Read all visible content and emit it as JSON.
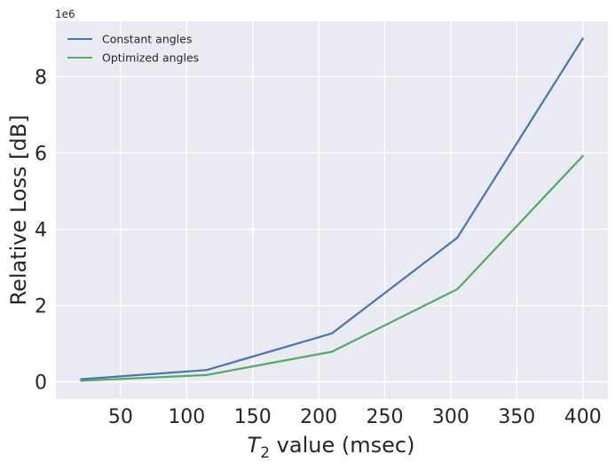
{
  "chart_data": {
    "type": "line",
    "title": "",
    "xlabel_main": "T",
    "xlabel_sub": "2",
    "xlabel_rest": " value (msec)",
    "ylabel": "Relative Loss [dB]",
    "y_offset_label": "1e6",
    "x": [
      20,
      115,
      210,
      305,
      400
    ],
    "xlim": [
      1.0,
      419.0
    ],
    "ylim": [
      -450000,
      9450000
    ],
    "x_ticks": [
      50,
      100,
      150,
      200,
      250,
      300,
      350,
      400
    ],
    "y_ticks": [
      0,
      2000000,
      4000000,
      6000000,
      8000000
    ],
    "x_tick_labels": [
      "50",
      "100",
      "150",
      "200",
      "250",
      "300",
      "350",
      "400"
    ],
    "y_tick_labels": [
      "0",
      "2",
      "4",
      "6",
      "8"
    ],
    "grid": true,
    "legend_position": "upper-left",
    "series": [
      {
        "name": "Constant angles",
        "color": "#4c72b0",
        "values": [
          70000,
          310000,
          1270000,
          3780000,
          9000000
        ]
      },
      {
        "name": "Optimized angles",
        "color": "#55a868",
        "values": [
          30000,
          180000,
          790000,
          2430000,
          5920000
        ]
      }
    ]
  }
}
